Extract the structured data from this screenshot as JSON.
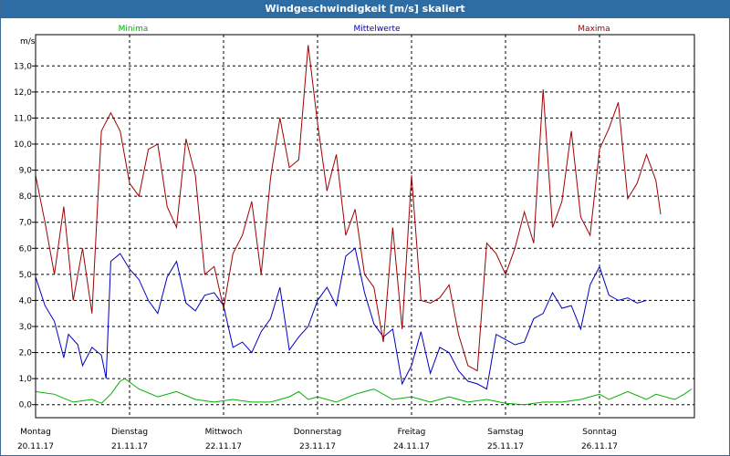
{
  "window": {
    "title": "Windgeschwindigkeit [m/s] skaliert"
  },
  "chart_data": {
    "type": "line",
    "title": "Windgeschwindigkeit [m/s] skaliert",
    "ylabel": "m/s",
    "ylim": [
      -0.5,
      14.2
    ],
    "xlim": [
      0,
      7
    ],
    "yticks": [
      "0,0",
      "1,0",
      "2,0",
      "3,0",
      "4,0",
      "5,0",
      "6,0",
      "7,0",
      "8,0",
      "9,0",
      "10,0",
      "11,0",
      "12,0",
      "13,0"
    ],
    "yvalues": [
      0,
      1,
      2,
      3,
      4,
      5,
      6,
      7,
      8,
      9,
      10,
      11,
      12,
      13
    ],
    "days": [
      {
        "name": "Montag",
        "date": "20.11.17"
      },
      {
        "name": "Dienstag",
        "date": "21.11.17"
      },
      {
        "name": "Mittwoch",
        "date": "22.11.17"
      },
      {
        "name": "Donnerstag",
        "date": "23.11.17"
      },
      {
        "name": "Freitag",
        "date": "24.11.17"
      },
      {
        "name": "Samstag",
        "date": "25.11.17"
      },
      {
        "name": "Sonntag",
        "date": "26.11.17"
      }
    ],
    "grid": true,
    "series": [
      {
        "name": "Minima",
        "color": "#00b000",
        "points": [
          [
            0,
            0.5
          ],
          [
            0.2,
            0.4
          ],
          [
            0.4,
            0.1
          ],
          [
            0.6,
            0.2
          ],
          [
            0.7,
            0.05
          ],
          [
            0.8,
            0.4
          ],
          [
            0.9,
            0.9
          ],
          [
            0.95,
            1.0
          ],
          [
            1.1,
            0.6
          ],
          [
            1.3,
            0.3
          ],
          [
            1.5,
            0.5
          ],
          [
            1.7,
            0.2
          ],
          [
            1.9,
            0.1
          ],
          [
            2.1,
            0.2
          ],
          [
            2.3,
            0.1
          ],
          [
            2.5,
            0.1
          ],
          [
            2.7,
            0.3
          ],
          [
            2.8,
            0.5
          ],
          [
            2.9,
            0.2
          ],
          [
            3.0,
            0.3
          ],
          [
            3.2,
            0.1
          ],
          [
            3.4,
            0.4
          ],
          [
            3.5,
            0.5
          ],
          [
            3.6,
            0.6
          ],
          [
            3.8,
            0.2
          ],
          [
            4.0,
            0.3
          ],
          [
            4.2,
            0.1
          ],
          [
            4.4,
            0.3
          ],
          [
            4.6,
            0.1
          ],
          [
            4.8,
            0.2
          ],
          [
            5.0,
            0.05
          ],
          [
            5.2,
            0.0
          ],
          [
            5.4,
            0.1
          ],
          [
            5.6,
            0.1
          ],
          [
            5.8,
            0.2
          ],
          [
            6.0,
            0.4
          ],
          [
            6.1,
            0.2
          ],
          [
            6.3,
            0.5
          ],
          [
            6.5,
            0.2
          ],
          [
            6.6,
            0.4
          ],
          [
            6.8,
            0.2
          ],
          [
            6.9,
            0.4
          ],
          [
            6.98,
            0.6
          ]
        ]
      },
      {
        "name": "Mittelwerte",
        "color": "#0000c0",
        "points": [
          [
            0,
            4.9
          ],
          [
            0.1,
            3.8
          ],
          [
            0.2,
            3.2
          ],
          [
            0.3,
            1.8
          ],
          [
            0.35,
            2.7
          ],
          [
            0.45,
            2.3
          ],
          [
            0.5,
            1.5
          ],
          [
            0.6,
            2.2
          ],
          [
            0.7,
            1.9
          ],
          [
            0.75,
            1.0
          ],
          [
            0.8,
            5.5
          ],
          [
            0.9,
            5.8
          ],
          [
            1.0,
            5.2
          ],
          [
            1.1,
            4.8
          ],
          [
            1.2,
            4.0
          ],
          [
            1.3,
            3.5
          ],
          [
            1.4,
            4.9
          ],
          [
            1.5,
            5.5
          ],
          [
            1.6,
            3.9
          ],
          [
            1.7,
            3.6
          ],
          [
            1.8,
            4.2
          ],
          [
            1.9,
            4.3
          ],
          [
            2.0,
            3.8
          ],
          [
            2.1,
            2.2
          ],
          [
            2.2,
            2.4
          ],
          [
            2.3,
            2.0
          ],
          [
            2.4,
            2.8
          ],
          [
            2.5,
            3.3
          ],
          [
            2.6,
            4.5
          ],
          [
            2.7,
            2.1
          ],
          [
            2.8,
            2.6
          ],
          [
            2.9,
            3.0
          ],
          [
            3.0,
            4.0
          ],
          [
            3.1,
            4.5
          ],
          [
            3.2,
            3.8
          ],
          [
            3.3,
            5.7
          ],
          [
            3.4,
            6.0
          ],
          [
            3.5,
            4.3
          ],
          [
            3.6,
            3.1
          ],
          [
            3.7,
            2.6
          ],
          [
            3.8,
            2.9
          ],
          [
            3.9,
            0.8
          ],
          [
            4.0,
            1.5
          ],
          [
            4.1,
            2.8
          ],
          [
            4.2,
            1.2
          ],
          [
            4.3,
            2.2
          ],
          [
            4.4,
            2.0
          ],
          [
            4.5,
            1.3
          ],
          [
            4.6,
            0.9
          ],
          [
            4.7,
            0.8
          ],
          [
            4.8,
            0.6
          ],
          [
            4.9,
            2.7
          ],
          [
            5.0,
            2.5
          ],
          [
            5.1,
            2.3
          ],
          [
            5.2,
            2.4
          ],
          [
            5.3,
            3.3
          ],
          [
            5.4,
            3.5
          ],
          [
            5.5,
            4.3
          ],
          [
            5.6,
            3.7
          ],
          [
            5.7,
            3.8
          ],
          [
            5.8,
            2.9
          ],
          [
            5.9,
            4.6
          ],
          [
            6.0,
            5.3
          ],
          [
            6.1,
            4.2
          ],
          [
            6.2,
            4.0
          ],
          [
            6.3,
            4.1
          ],
          [
            6.4,
            3.9
          ],
          [
            6.5,
            4.0
          ]
        ]
      },
      {
        "name": "Maxima",
        "color": "#a00000",
        "points": [
          [
            0,
            8.8
          ],
          [
            0.1,
            7.0
          ],
          [
            0.2,
            5.0
          ],
          [
            0.3,
            7.6
          ],
          [
            0.4,
            4.0
          ],
          [
            0.5,
            6.0
          ],
          [
            0.6,
            3.5
          ],
          [
            0.7,
            10.5
          ],
          [
            0.8,
            11.2
          ],
          [
            0.9,
            10.5
          ],
          [
            1.0,
            8.5
          ],
          [
            1.1,
            8.0
          ],
          [
            1.2,
            9.8
          ],
          [
            1.3,
            10.0
          ],
          [
            1.4,
            7.6
          ],
          [
            1.5,
            6.8
          ],
          [
            1.6,
            10.2
          ],
          [
            1.7,
            8.8
          ],
          [
            1.8,
            5.0
          ],
          [
            1.9,
            5.3
          ],
          [
            2.0,
            3.7
          ],
          [
            2.1,
            5.8
          ],
          [
            2.2,
            6.5
          ],
          [
            2.3,
            7.8
          ],
          [
            2.4,
            5.0
          ],
          [
            2.5,
            8.7
          ],
          [
            2.6,
            11.0
          ],
          [
            2.7,
            9.1
          ],
          [
            2.8,
            9.4
          ],
          [
            2.9,
            13.8
          ],
          [
            3.0,
            10.8
          ],
          [
            3.1,
            8.2
          ],
          [
            3.2,
            9.6
          ],
          [
            3.3,
            6.5
          ],
          [
            3.4,
            7.5
          ],
          [
            3.5,
            5.0
          ],
          [
            3.6,
            4.5
          ],
          [
            3.7,
            2.4
          ],
          [
            3.8,
            6.8
          ],
          [
            3.9,
            2.9
          ],
          [
            4.0,
            8.8
          ],
          [
            4.1,
            4.0
          ],
          [
            4.2,
            3.9
          ],
          [
            4.3,
            4.1
          ],
          [
            4.4,
            4.6
          ],
          [
            4.5,
            2.7
          ],
          [
            4.6,
            1.5
          ],
          [
            4.7,
            1.3
          ],
          [
            4.8,
            6.2
          ],
          [
            4.9,
            5.8
          ],
          [
            5.0,
            5.0
          ],
          [
            5.1,
            6.0
          ],
          [
            5.2,
            7.4
          ],
          [
            5.3,
            6.2
          ],
          [
            5.4,
            12.1
          ],
          [
            5.5,
            6.8
          ],
          [
            5.6,
            7.8
          ],
          [
            5.7,
            10.5
          ],
          [
            5.8,
            7.2
          ],
          [
            5.9,
            6.5
          ],
          [
            6.0,
            9.8
          ],
          [
            6.1,
            10.6
          ],
          [
            6.2,
            11.6
          ],
          [
            6.3,
            7.9
          ],
          [
            6.4,
            8.5
          ],
          [
            6.5,
            9.6
          ],
          [
            6.6,
            8.6
          ],
          [
            6.65,
            7.3
          ]
        ]
      }
    ]
  }
}
